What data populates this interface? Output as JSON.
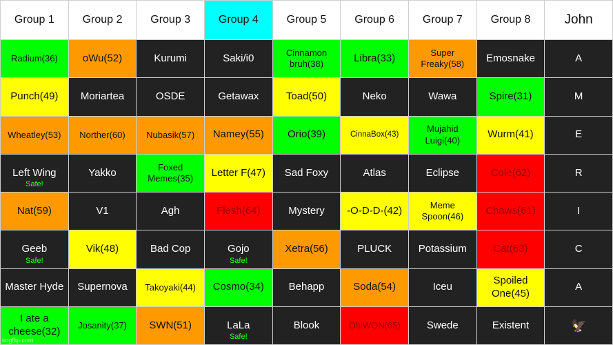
{
  "colors": {
    "green": "#00ff00",
    "orange": "#ff9900",
    "yellow": "#ffff00",
    "red": "#ff0000",
    "dark": "#222222",
    "cyan": "#00ffff",
    "white": "#ffffff",
    "safe_text": "#33ff33",
    "red_text": "#990000"
  },
  "headers": [
    {
      "label": "Group 1",
      "color": "white"
    },
    {
      "label": "Group 2",
      "color": "white"
    },
    {
      "label": "Group 3",
      "color": "white"
    },
    {
      "label": "Group 4",
      "color": "cyan"
    },
    {
      "label": "Group 5",
      "color": "white"
    },
    {
      "label": "Group 6",
      "color": "white"
    },
    {
      "label": "Group 7",
      "color": "white"
    },
    {
      "label": "Group 8",
      "color": "white"
    },
    {
      "label": "John",
      "color": "white"
    }
  ],
  "rows": [
    [
      {
        "text": "Radium(36)",
        "color": "green",
        "size": "sm"
      },
      {
        "text": "oWu(52)",
        "color": "orange"
      },
      {
        "text": "Kurumi",
        "color": "dark"
      },
      {
        "text": "Saki/i0",
        "color": "dark"
      },
      {
        "text": "Cinnamon bruh(38)",
        "color": "green",
        "size": "sm"
      },
      {
        "text": "Libra(33)",
        "color": "green"
      },
      {
        "text": "Super Freaky(58)",
        "color": "orange",
        "size": "sm"
      },
      {
        "text": "Emosnake",
        "color": "dark"
      },
      {
        "text": "A",
        "color": "dark"
      }
    ],
    [
      {
        "text": "Punch(49)",
        "color": "yellow"
      },
      {
        "text": "Moriartea",
        "color": "dark"
      },
      {
        "text": "OSDE",
        "color": "dark"
      },
      {
        "text": "Getawax",
        "color": "dark"
      },
      {
        "text": "Toad(50)",
        "color": "yellow"
      },
      {
        "text": "Neko",
        "color": "dark"
      },
      {
        "text": "Wawa",
        "color": "dark"
      },
      {
        "text": "Spire(31)",
        "color": "green"
      },
      {
        "text": "M",
        "color": "dark"
      }
    ],
    [
      {
        "text": "Wheatley(53)",
        "color": "orange",
        "size": "sm"
      },
      {
        "text": "Norther(60)",
        "color": "orange",
        "size": "sm"
      },
      {
        "text": "Nubasik(57)",
        "color": "orange",
        "size": "sm"
      },
      {
        "text": "Namey(55)",
        "color": "orange"
      },
      {
        "text": "Orio(39)",
        "color": "green"
      },
      {
        "text": "CinnaBox(43)",
        "color": "yellow",
        "size": "xs"
      },
      {
        "text": "Mujahid Luigi(40)",
        "color": "green",
        "size": "sm"
      },
      {
        "text": "Wurm(41)",
        "color": "yellow"
      },
      {
        "text": "E",
        "color": "dark"
      }
    ],
    [
      {
        "text": "Left Wing",
        "color": "dark",
        "note": "Safe!"
      },
      {
        "text": "Yakko",
        "color": "dark"
      },
      {
        "text": "Foxed Memes(35)",
        "color": "green",
        "size": "sm"
      },
      {
        "text": "Letter F(47)",
        "color": "yellow"
      },
      {
        "text": "Sad Foxy",
        "color": "dark"
      },
      {
        "text": "Atlas",
        "color": "dark"
      },
      {
        "text": "Eclipse",
        "color": "dark"
      },
      {
        "text": "Cole(62)",
        "color": "red"
      },
      {
        "text": "R",
        "color": "dark"
      }
    ],
    [
      {
        "text": "Nat(59)",
        "color": "orange"
      },
      {
        "text": "V1",
        "color": "dark"
      },
      {
        "text": "Agh",
        "color": "dark"
      },
      {
        "text": "Flesh(64)",
        "color": "red"
      },
      {
        "text": "Mystery",
        "color": "dark"
      },
      {
        "text": "-O-D-D-(42)",
        "color": "yellow"
      },
      {
        "text": "Meme Spoon(46)",
        "color": "yellow",
        "size": "sm"
      },
      {
        "text": "Chaws(61)",
        "color": "red"
      },
      {
        "text": "I",
        "color": "dark"
      }
    ],
    [
      {
        "text": "Geeb",
        "color": "dark",
        "note": "Safe!"
      },
      {
        "text": "Vik(48)",
        "color": "yellow"
      },
      {
        "text": "Bad Cop",
        "color": "dark"
      },
      {
        "text": "Gojo",
        "color": "dark",
        "note": "Safe!"
      },
      {
        "text": "Xetra(56)",
        "color": "orange"
      },
      {
        "text": "PLUCK",
        "color": "dark"
      },
      {
        "text": "Potassium",
        "color": "dark"
      },
      {
        "text": "Cat(63)",
        "color": "red"
      },
      {
        "text": "C",
        "color": "dark"
      }
    ],
    [
      {
        "text": "Master Hyde",
        "color": "dark"
      },
      {
        "text": "Supernova",
        "color": "dark"
      },
      {
        "text": "Takoyaki(44)",
        "color": "yellow",
        "size": "sm"
      },
      {
        "text": "Cosmo(34)",
        "color": "green"
      },
      {
        "text": "Behapp",
        "color": "dark"
      },
      {
        "text": "Soda(54)",
        "color": "orange"
      },
      {
        "text": "Iceu",
        "color": "dark"
      },
      {
        "text": "Spoiled One(45)",
        "color": "yellow"
      },
      {
        "text": "A",
        "color": "dark"
      }
    ],
    [
      {
        "text": "I ate a cheese(32)",
        "color": "green"
      },
      {
        "text": "Josanity(37)",
        "color": "green",
        "size": "sm"
      },
      {
        "text": "SWN(51)",
        "color": "orange"
      },
      {
        "text": "LaLa",
        "color": "dark",
        "note": "Safe!"
      },
      {
        "text": "Blook",
        "color": "dark"
      },
      {
        "text": "ObiWON(65)",
        "color": "red",
        "size": "sm"
      },
      {
        "text": "Swede",
        "color": "dark"
      },
      {
        "text": "Existent",
        "color": "dark"
      },
      {
        "text": "🦅",
        "color": "dark",
        "icon": "eagle-icon"
      }
    ]
  ],
  "watermark": "imgflip.com"
}
